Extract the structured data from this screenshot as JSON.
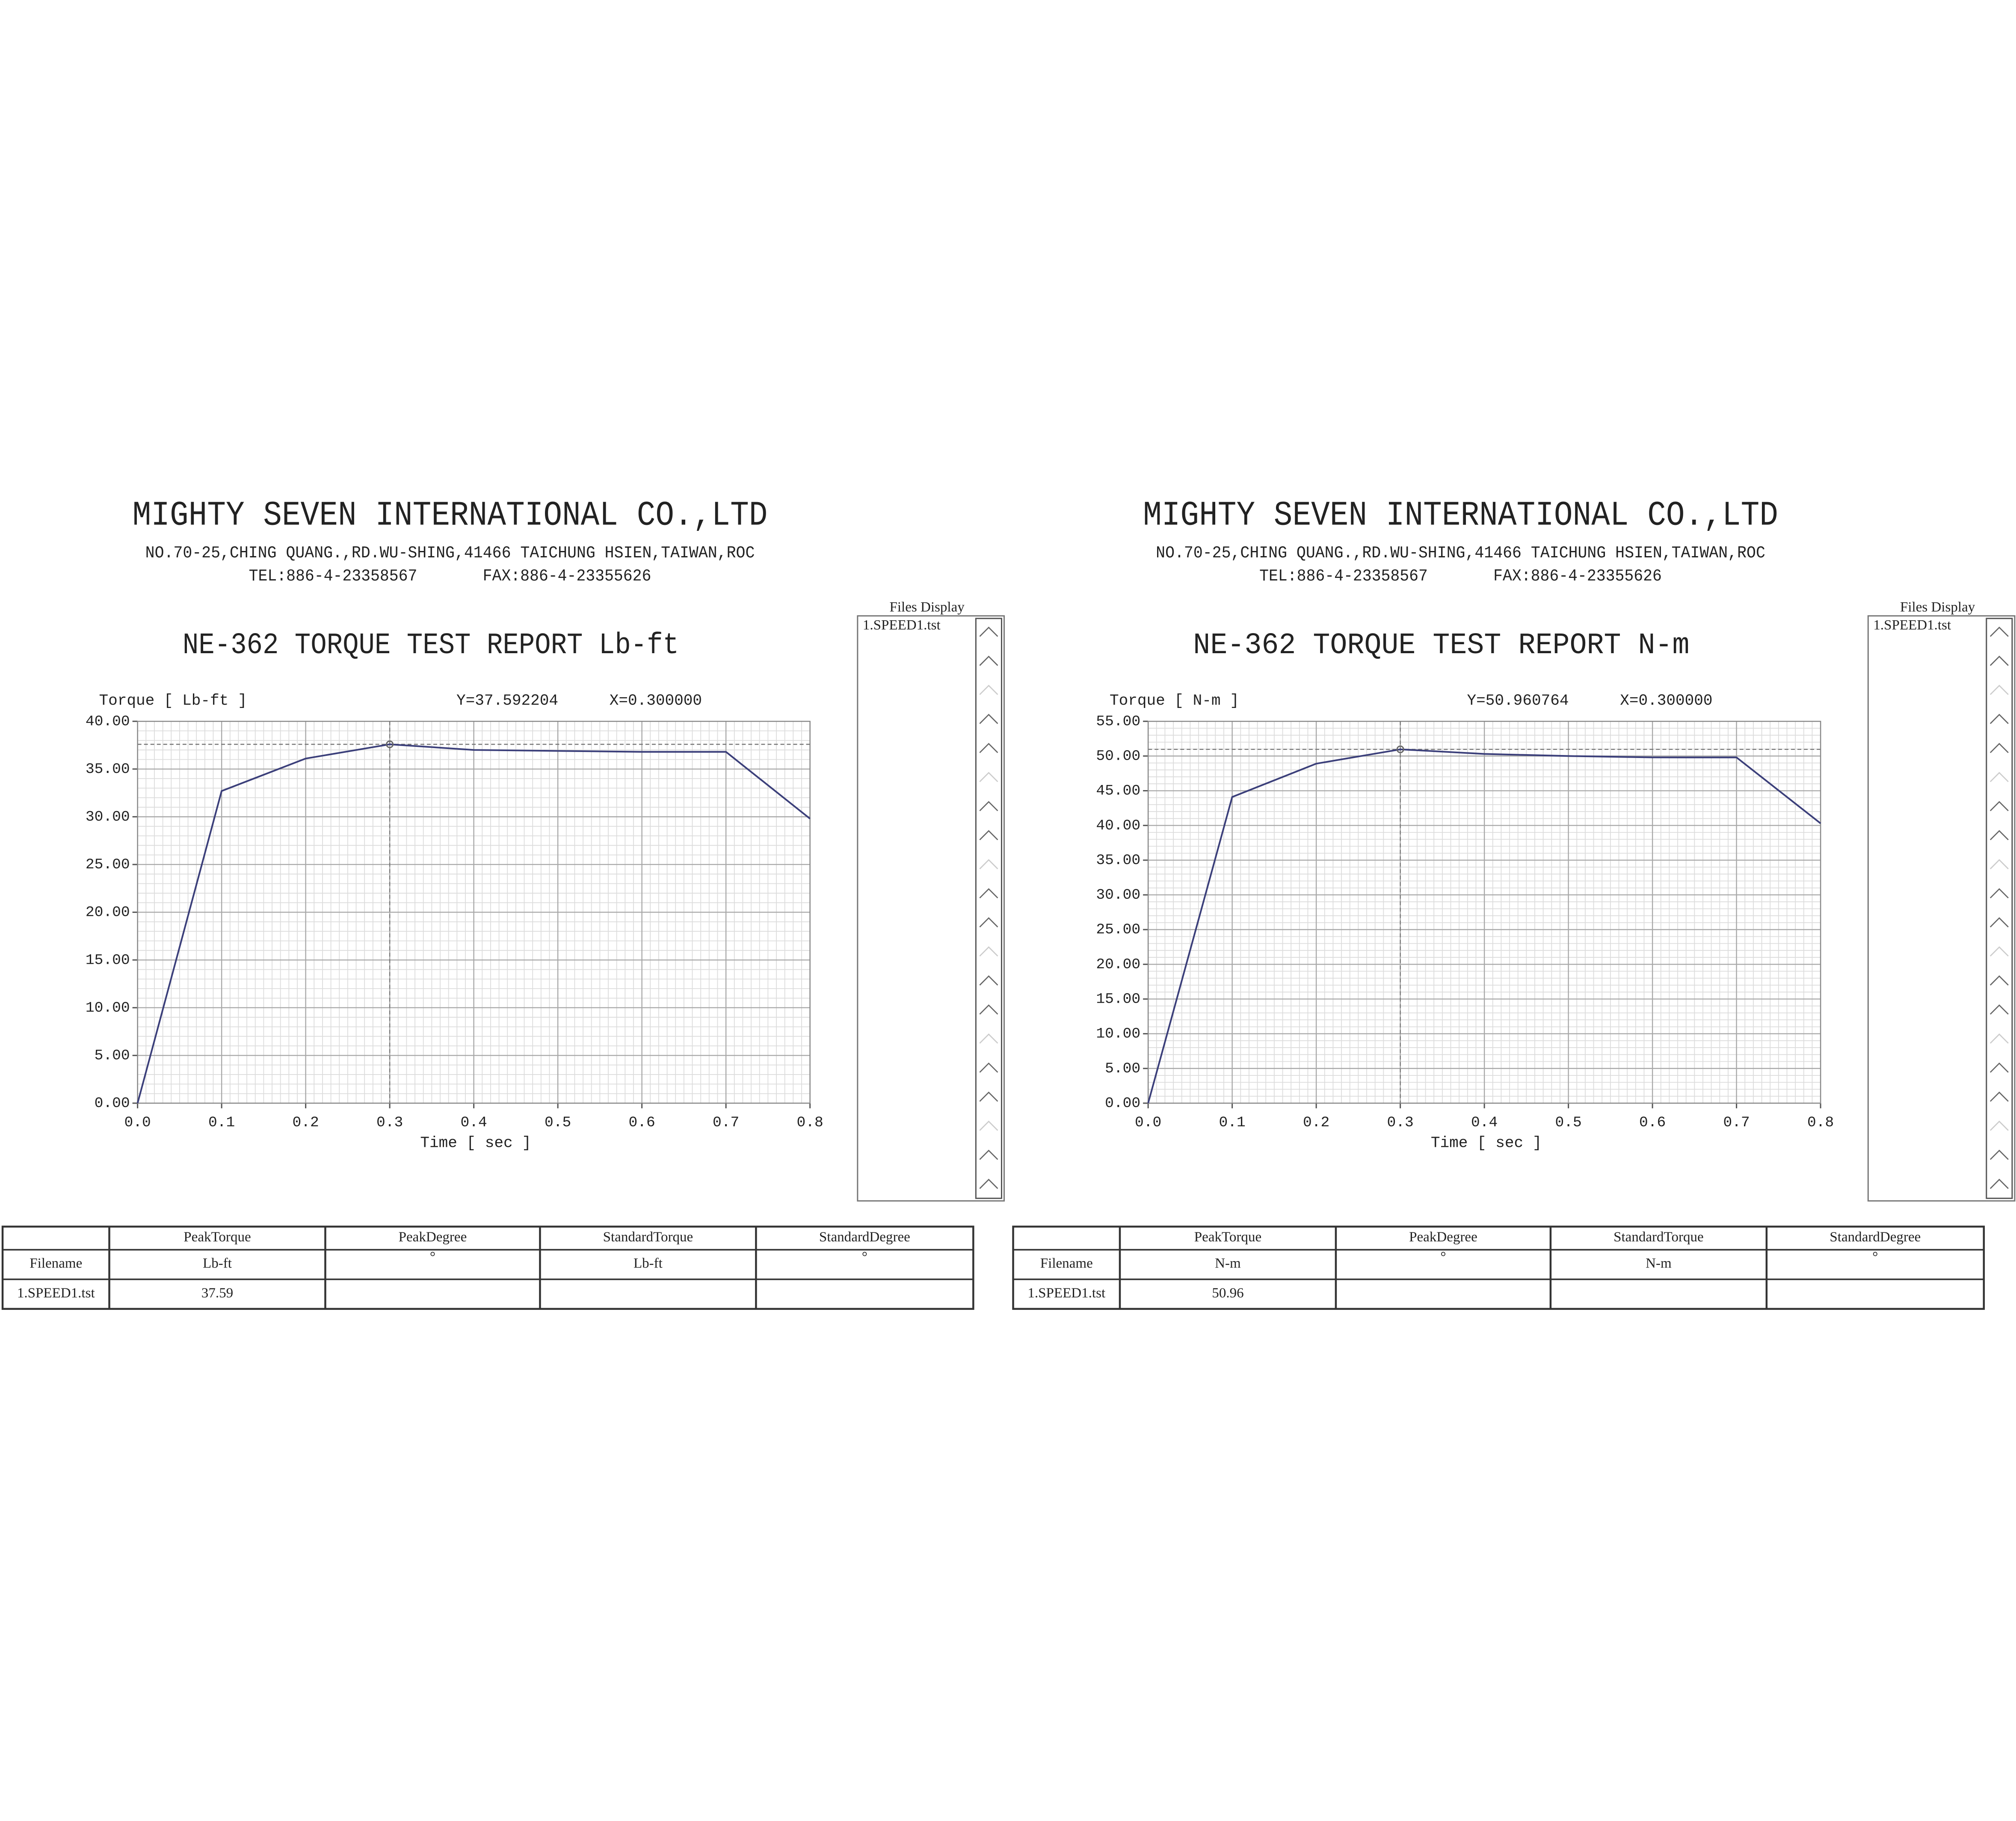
{
  "chart_data": [
    {
      "type": "line",
      "title": "NE-362 TORQUE TEST REPORT Lb-ft",
      "y_label": "Torque [ Lb-ft ]",
      "x_label": "Time [ sec ]",
      "annotations": [
        "Y=37.592204",
        "X=0.300000"
      ],
      "x": [
        0,
        0.1,
        0.2,
        0.3,
        0.4,
        0.5,
        0.6,
        0.7,
        0.8
      ],
      "values": [
        0,
        32.7,
        36.1,
        37.59,
        37.0,
        36.9,
        36.8,
        36.8,
        29.8
      ],
      "color": "#3b3f7a",
      "xlim": [
        0,
        0.8
      ],
      "ylim": [
        0,
        40
      ],
      "xticks": [
        {
          "value": 0,
          "label": "0.0"
        },
        0.1,
        0.2,
        0.3,
        0.4,
        0.5,
        0.6,
        0.7,
        0.8
      ],
      "yticks": [
        {
          "value": 0,
          "label": "0.00"
        },
        {
          "value": 5,
          "label": "5.00"
        },
        {
          "value": 10,
          "label": "10.00"
        },
        {
          "value": 15,
          "label": "15.00"
        },
        {
          "value": 20,
          "label": "20.00"
        },
        {
          "value": 25,
          "label": "25.00"
        },
        {
          "value": 30,
          "label": "30.00"
        },
        {
          "value": 35,
          "label": "35.00"
        },
        {
          "value": 40,
          "label": "40.00"
        }
      ],
      "grid": true
    },
    {
      "type": "line",
      "title": "NE-362 TORQUE TEST REPORT N-m",
      "y_label": "Torque [ N-m ]",
      "x_label": "Time [ sec ]",
      "annotations": [
        "Y=50.960764",
        "X=0.300000"
      ],
      "x": [
        0,
        0.1,
        0.2,
        0.3,
        0.4,
        0.5,
        0.6,
        0.7,
        0.8
      ],
      "values": [
        0,
        44.1,
        48.9,
        50.96,
        50.3,
        50.0,
        49.8,
        49.8,
        40.3
      ],
      "color": "#3b3f7a",
      "xlim": [
        0,
        0.8
      ],
      "ylim": [
        0,
        55
      ],
      "xticks": [
        {
          "value": 0,
          "label": "0.0"
        },
        0.1,
        0.2,
        0.3,
        0.4,
        0.5,
        0.6,
        0.7,
        0.8
      ],
      "yticks": [
        {
          "value": 0,
          "label": "0.00"
        },
        {
          "value": 5,
          "label": "5.00"
        },
        {
          "value": 10,
          "label": "10.00"
        },
        {
          "value": 15,
          "label": "15.00"
        },
        {
          "value": 20,
          "label": "20.00"
        },
        {
          "value": 25,
          "label": "25.00"
        },
        {
          "value": 30,
          "label": "30.00"
        },
        {
          "value": 35,
          "label": "35.00"
        },
        {
          "value": 40,
          "label": "40.00"
        },
        {
          "value": 45,
          "label": "45.00"
        },
        {
          "value": 50,
          "label": "50.00"
        },
        {
          "value": 55,
          "label": "55.00"
        }
      ],
      "grid": true
    }
  ],
  "reports": [
    {
      "company": "MIGHTY SEVEN INTERNATIONAL CO.,LTD",
      "address": "NO.70-25,CHING QUANG.,RD.WU-SHING,41466 TAICHUNG HSIEN,TAIWAN,ROC",
      "tel": "TEL:886-4-23358567",
      "fax": "FAX:886-4-23355626",
      "files_title": "Files Display",
      "files": [
        "1.SPEED1.tst"
      ],
      "table": {
        "columns": [
          "PeakTorque",
          "PeakDegree",
          "StandardTorque",
          "StandardDegree"
        ],
        "units_label": "Filename",
        "units": [
          "Lb-ft",
          "°",
          "Lb-ft",
          "°"
        ],
        "rows": [
          [
            "1.SPEED1.tst",
            "37.59"
          ]
        ]
      }
    },
    {
      "company": "MIGHTY SEVEN INTERNATIONAL CO.,LTD",
      "address": "NO.70-25,CHING QUANG.,RD.WU-SHING,41466 TAICHUNG HSIEN,TAIWAN,ROC",
      "tel": "TEL:886-4-23358567",
      "fax": "FAX:886-4-23355626",
      "files_title": "Files Display",
      "files": [
        "1.SPEED1.tst"
      ],
      "table": {
        "columns": [
          "PeakTorque",
          "PeakDegree",
          "StandardTorque",
          "StandardDegree"
        ],
        "units_label": "Filename",
        "units": [
          "N-m",
          "°",
          "N-m",
          "°"
        ],
        "rows": [
          [
            "1.SPEED1.tst",
            "50.96"
          ]
        ]
      }
    }
  ]
}
